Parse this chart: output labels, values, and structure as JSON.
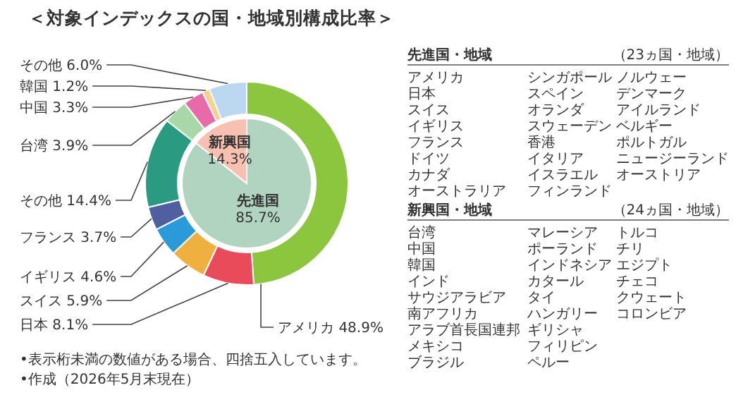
{
  "chart_data": [
    {
      "type": "donut",
      "title": "＜対象インデックスの国・地域別構成比率＞",
      "categories": [
        "アメリカ",
        "日本",
        "スイス",
        "イギリス",
        "フランス",
        "その他",
        "台湾",
        "中国",
        "韓国",
        "その他"
      ],
      "values": [
        48.9,
        8.1,
        5.9,
        4.6,
        3.7,
        14.4,
        3.9,
        3.3,
        1.2,
        6.0
      ],
      "value_labels": [
        "48.9%",
        "8.1%",
        "5.9%",
        "4.6%",
        "3.7%",
        "14.4%",
        "3.9%",
        "3.3%",
        "1.2%",
        "6.0%"
      ],
      "colors": [
        "#8cc63f",
        "#e94b5b",
        "#f0b040",
        "#2a9bd8",
        "#4f5fa0",
        "#2a9a80",
        "#a8d8a8",
        "#e86aa8",
        "#f8d090",
        "#bcd8f0"
      ],
      "annotations": [
        "•表示桁未満の数値がある場合、四捨五入しています。",
        "•作成（2026年5月末現在）"
      ]
    },
    {
      "type": "pie",
      "categories": [
        "先進国",
        "新興国"
      ],
      "values": [
        85.7,
        14.3
      ],
      "value_labels": [
        "85.7%",
        "14.3%"
      ],
      "colors": [
        "#b0d4c0",
        "#f8c0b0"
      ]
    },
    {
      "type": "other",
      "title": "先進国・地域",
      "subtitle": "（23ヵ国・地域）",
      "annotations": [
        "アメリカ",
        "日本",
        "スイス",
        "イギリス",
        "フランス",
        "ドイツ",
        "カナダ",
        "オーストラリア",
        "シンガポール",
        "スペイン",
        "オランダ",
        "スウェーデン",
        "香港",
        "イタリア",
        "イスラエル",
        "フィンランド",
        "ノルウェー",
        "デンマーク",
        "アイルランド",
        "ベルギー",
        "ポルトガル",
        "ニュージーランド",
        "オーストリア"
      ]
    },
    {
      "type": "other",
      "title": "新興国・地域",
      "subtitle": "（24ヵ国・地域）",
      "annotations": [
        "台湾",
        "中国",
        "韓国",
        "インド",
        "サウジアラビア",
        "南アフリカ",
        "アラブ首長国連邦",
        "メキシコ",
        "ブラジル",
        "マレーシア",
        "ポーランド",
        "インドネシア",
        "カタール",
        "タイ",
        "ハンガリー",
        "ギリシャ",
        "フィリピン",
        "ペルー",
        "トルコ",
        "チリ",
        "エジプト",
        "チェコ",
        "クウェート",
        "コロンビア"
      ]
    }
  ]
}
